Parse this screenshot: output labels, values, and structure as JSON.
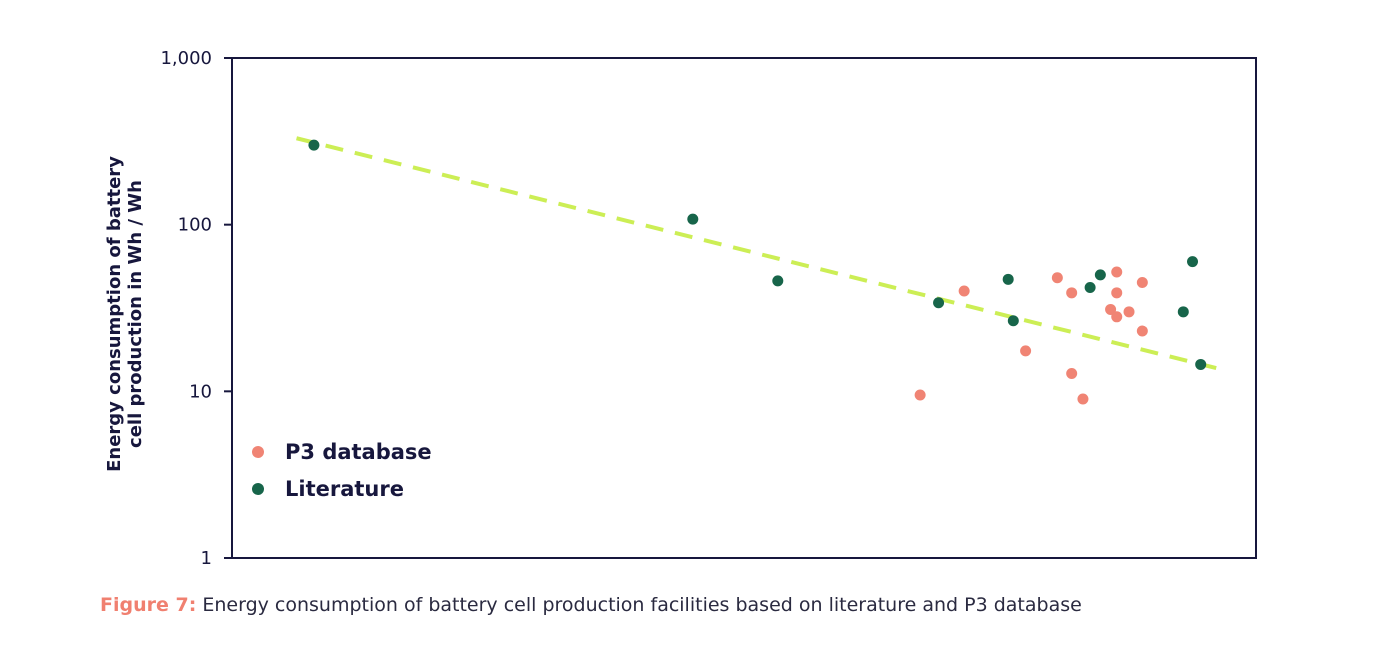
{
  "chart_data": {
    "type": "scatter",
    "title": "",
    "xlabel": "",
    "ylabel_line1": "Energy consumption of battery",
    "ylabel_line2": "cell production in  Wh / Wh",
    "yscale": "log",
    "ylim": [
      1,
      1000
    ],
    "xlim": [
      0,
      1
    ],
    "y_ticks": [
      "1",
      "10",
      "100",
      "1,000"
    ],
    "x_ticks": [],
    "grid": false,
    "legend_position": "bottom-left",
    "colors": {
      "p3": "#f08474",
      "literature": "#17654a",
      "trend": "#ccee55",
      "axis": "#17173d"
    },
    "series": [
      {
        "name": "P3 database",
        "color": "#f08474",
        "points": [
          {
            "x": 0.672,
            "y": 9.5
          },
          {
            "x": 0.715,
            "y": 40
          },
          {
            "x": 0.775,
            "y": 17.5
          },
          {
            "x": 0.806,
            "y": 48
          },
          {
            "x": 0.82,
            "y": 39
          },
          {
            "x": 0.82,
            "y": 12.8
          },
          {
            "x": 0.831,
            "y": 9
          },
          {
            "x": 0.858,
            "y": 31
          },
          {
            "x": 0.864,
            "y": 52
          },
          {
            "x": 0.864,
            "y": 39
          },
          {
            "x": 0.864,
            "y": 28
          },
          {
            "x": 0.876,
            "y": 30
          },
          {
            "x": 0.889,
            "y": 45
          },
          {
            "x": 0.889,
            "y": 23
          }
        ]
      },
      {
        "name": "Literature",
        "color": "#17654a",
        "points": [
          {
            "x": 0.08,
            "y": 300
          },
          {
            "x": 0.45,
            "y": 108
          },
          {
            "x": 0.533,
            "y": 46
          },
          {
            "x": 0.69,
            "y": 34
          },
          {
            "x": 0.758,
            "y": 47
          },
          {
            "x": 0.763,
            "y": 26.5
          },
          {
            "x": 0.838,
            "y": 42
          },
          {
            "x": 0.848,
            "y": 50
          },
          {
            "x": 0.929,
            "y": 30
          },
          {
            "x": 0.938,
            "y": 60
          },
          {
            "x": 0.946,
            "y": 14.5
          }
        ]
      }
    ],
    "trendline": {
      "style": "dashed",
      "start": {
        "x": 0.063,
        "y": 330
      },
      "end": {
        "x": 0.967,
        "y": 13.5
      }
    }
  },
  "caption": {
    "label": "Figure 7:",
    "text": " Energy consumption of battery cell production facilities based on literature and P3 database"
  }
}
